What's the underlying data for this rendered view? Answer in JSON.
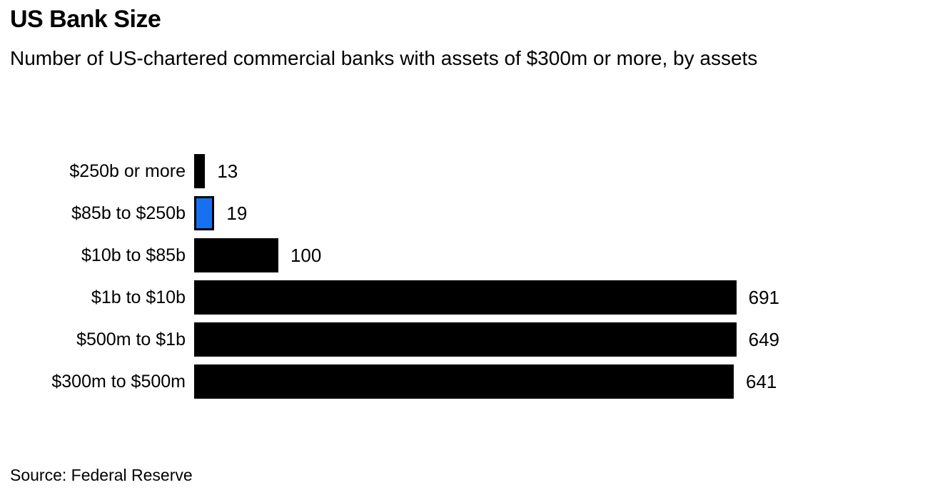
{
  "header": {
    "title": "US Bank Size",
    "subtitle": "Number of US-chartered commercial banks with assets of $300m or more, by assets"
  },
  "chart_data": {
    "type": "bar",
    "orientation": "horizontal",
    "title": "US Bank Size",
    "subtitle": "Number of US-chartered commercial banks with assets of $300m or more, by assets",
    "categories": [
      "$250b or more",
      "$85b to $250b",
      "$10b to $85b",
      "$1b to $10b",
      "$500m to $1b",
      "$300m to $500m"
    ],
    "values": [
      13,
      19,
      100,
      691,
      649,
      641
    ],
    "value_labels": [
      "13",
      "19",
      "100",
      "691",
      "649",
      "641"
    ],
    "xlim": [
      0,
      691
    ],
    "grid": false,
    "legend": false,
    "bar_color": "#000000",
    "highlight_color": "#1770f0",
    "highlight_index": 1,
    "highlight_category": "$85b to $250b"
  },
  "footer": {
    "source": "Source: Federal Reserve"
  }
}
